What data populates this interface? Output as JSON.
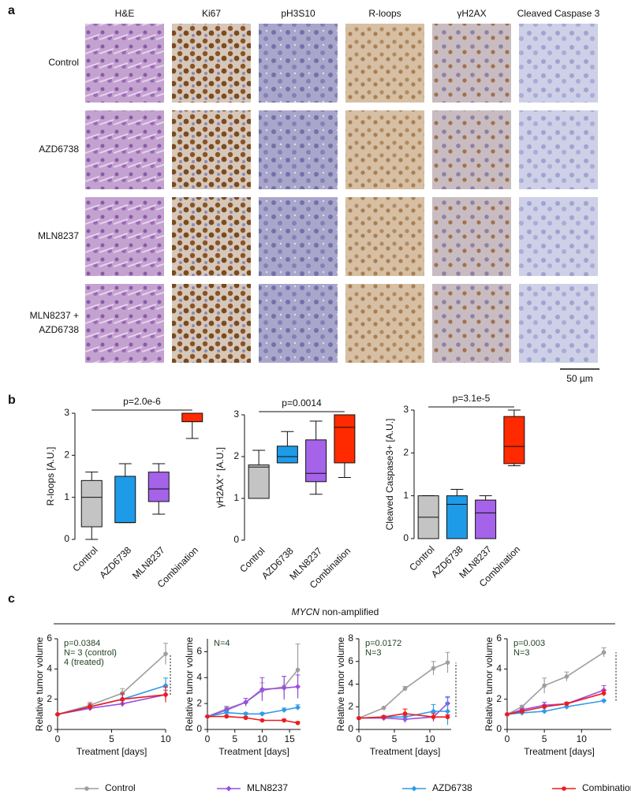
{
  "panel_labels": [
    "a",
    "b",
    "c"
  ],
  "micrographs": {
    "columns": [
      "H&E",
      "Ki67",
      "pH3S10",
      "R-loops",
      "γH2AX",
      "Cleaved Caspase 3"
    ],
    "rows": [
      [
        "Control"
      ],
      [
        "AZD6738"
      ],
      [
        "MLN8237"
      ],
      [
        "MLN8237 +",
        "AZD6738"
      ]
    ],
    "scale_bar": "50 µm"
  },
  "group_label": {
    "gene": "MYCN",
    "text": "non-amplified"
  },
  "legend": {
    "entries": [
      {
        "name": "Control",
        "color": "#9e9e9e",
        "marker": "circle"
      },
      {
        "name": "MLN8237",
        "color": "#9a4fe0",
        "marker": "diamond"
      },
      {
        "name": "AZD6738",
        "color": "#2f9be8",
        "marker": "diamond"
      },
      {
        "name": "Combination",
        "color": "#ee1c1c",
        "marker": "circle"
      }
    ]
  },
  "chart_data": [
    {
      "type": "box",
      "ylabel": "R-loops [A.U.]",
      "annotation": "p=2.0e-6",
      "categories": [
        "Control",
        "AZD6738",
        "MLN8237",
        "Combination"
      ],
      "colors": [
        "#c4c4c4",
        "#1e9be8",
        "#a463e8",
        "#ff2a00"
      ],
      "boxes": [
        {
          "min": 0,
          "q1": 0.3,
          "median": 1.0,
          "q3": 1.4,
          "max": 1.6
        },
        {
          "min": 0.4,
          "q1": 0.4,
          "median": 0.4,
          "q3": 1.5,
          "max": 1.8
        },
        {
          "min": 0.6,
          "q1": 0.9,
          "median": 1.2,
          "q3": 1.6,
          "max": 1.8
        },
        {
          "min": 2.4,
          "q1": 2.8,
          "median": 2.8,
          "q3": 3.0,
          "max": 3.0
        }
      ],
      "ylim": [
        0,
        3
      ],
      "yticks": [
        0,
        1,
        2,
        3
      ]
    },
    {
      "type": "box",
      "ylabel": "γH2AX⁺ [A.U.]",
      "annotation": "p=0.0014",
      "categories": [
        "Control",
        "AZD6738",
        "MLN8237",
        "Combination"
      ],
      "colors": [
        "#c4c4c4",
        "#1e9be8",
        "#a463e8",
        "#ff2a00"
      ],
      "boxes": [
        {
          "min": 1.0,
          "q1": 1.0,
          "median": 1.75,
          "q3": 1.8,
          "max": 2.15
        },
        {
          "min": 1.85,
          "q1": 1.85,
          "median": 2.0,
          "q3": 2.25,
          "max": 2.6
        },
        {
          "min": 1.1,
          "q1": 1.4,
          "median": 1.6,
          "q3": 2.4,
          "max": 2.85
        },
        {
          "min": 1.5,
          "q1": 1.85,
          "median": 2.7,
          "q3": 3.0,
          "max": 3.0
        }
      ],
      "ylim": [
        0,
        3
      ],
      "yticks": [
        0,
        1,
        2,
        3
      ]
    },
    {
      "type": "box",
      "ylabel": "Cleaved Caspase3+ [A.U.]",
      "annotation": "p=3.1e-5",
      "categories": [
        "Control",
        "AZD6738",
        "MLN8237",
        "Combination"
      ],
      "colors": [
        "#c4c4c4",
        "#1e9be8",
        "#a463e8",
        "#ff2a00"
      ],
      "boxes": [
        {
          "min": 0,
          "q1": 0,
          "median": 0.5,
          "q3": 1.0,
          "max": 1.0
        },
        {
          "min": 0,
          "q1": 0,
          "median": 0.8,
          "q3": 1.0,
          "max": 1.15
        },
        {
          "min": 0,
          "q1": 0,
          "median": 0.6,
          "q3": 0.9,
          "max": 1.0
        },
        {
          "min": 1.7,
          "q1": 1.75,
          "median": 2.15,
          "q3": 2.85,
          "max": 3.0
        }
      ],
      "ylim": [
        0,
        3
      ],
      "yticks": [
        0,
        1,
        2,
        3
      ]
    },
    {
      "type": "line",
      "xlabel": "Treatment [days]",
      "ylabel": "Relative tumor volume",
      "annotations": [
        "p=0.0384",
        "N= 3 (control)",
        "4 (treated)"
      ],
      "end_comparison_line": true,
      "x": [
        0,
        3,
        6,
        10
      ],
      "series": [
        {
          "values": [
            1,
            1.6,
            2.4,
            5.0
          ],
          "errors": [
            0,
            0.2,
            0.3,
            0.7
          ]
        },
        {
          "values": [
            1,
            1.4,
            1.7,
            2.3
          ],
          "errors": [
            0,
            0.1,
            0.2,
            0.3
          ]
        },
        {
          "values": [
            1,
            1.5,
            2.0,
            2.9
          ],
          "errors": [
            0,
            0.1,
            0.3,
            0.5
          ]
        },
        {
          "values": [
            1,
            1.5,
            2.0,
            2.3
          ],
          "errors": [
            0,
            0.2,
            0.4,
            0.5
          ]
        }
      ],
      "xlim": [
        0,
        10
      ],
      "xticks": [
        0,
        5,
        10
      ],
      "ylim": [
        0,
        6
      ],
      "yticks": [
        0,
        2,
        4,
        6
      ]
    },
    {
      "type": "line",
      "xlabel": "Treatment [days]",
      "ylabel": "Relative tumor volume",
      "annotations": [
        "N=4"
      ],
      "end_comparison_line": false,
      "x": [
        0,
        3.5,
        7,
        10,
        14,
        16.5
      ],
      "series": [
        {
          "values": [
            1,
            1.6,
            2.1,
            3.0,
            3.3,
            4.6
          ],
          "errors": [
            0,
            0.2,
            0.3,
            0.6,
            0.8,
            2.0
          ]
        },
        {
          "values": [
            1,
            1.5,
            2.1,
            3.1,
            3.2,
            3.3
          ],
          "errors": [
            0,
            0.2,
            0.3,
            0.9,
            0.9,
            0.9
          ]
        },
        {
          "values": [
            1,
            1.3,
            1.2,
            1.2,
            1.5,
            1.7
          ],
          "errors": [
            0,
            0.1,
            0.1,
            0.1,
            0.15,
            0.2
          ]
        },
        {
          "values": [
            1,
            1.0,
            0.9,
            0.7,
            0.7,
            0.5
          ],
          "errors": [
            0,
            0.1,
            0.1,
            0.05,
            0.1,
            0.1
          ]
        }
      ],
      "xlim": [
        0,
        17
      ],
      "xticks": [
        0,
        5,
        10,
        15
      ],
      "ylim": [
        0,
        7
      ],
      "yticks": [
        0,
        2,
        4,
        6
      ]
    },
    {
      "type": "line",
      "xlabel": "Treatment [days]",
      "ylabel": "Relative tumor volume",
      "annotations": [
        "p=0.0172",
        "N=3"
      ],
      "end_comparison_line": true,
      "x": [
        0,
        3.5,
        6.5,
        10.5,
        12.5
      ],
      "series": [
        {
          "values": [
            1,
            1.9,
            3.6,
            5.4,
            5.9
          ],
          "errors": [
            0,
            0.05,
            0.2,
            0.6,
            0.9
          ]
        },
        {
          "values": [
            1,
            1.0,
            0.9,
            1.1,
            2.3
          ],
          "errors": [
            0,
            0.1,
            0.3,
            0.4,
            0.6
          ]
        },
        {
          "values": [
            1,
            1.1,
            1.1,
            1.6,
            1.6
          ],
          "errors": [
            0,
            0.1,
            0.2,
            0.6,
            1.2
          ]
        },
        {
          "values": [
            1,
            1.1,
            1.4,
            1.1,
            1.1
          ],
          "errors": [
            0,
            0.1,
            0.4,
            0.3,
            0.2
          ]
        }
      ],
      "xlim": [
        0,
        13
      ],
      "xticks": [
        0,
        5,
        10
      ],
      "ylim": [
        0,
        8
      ],
      "yticks": [
        0,
        2,
        4,
        6,
        8
      ]
    },
    {
      "type": "line",
      "xlabel": "Treatment [days]",
      "ylabel": "Relative tumor volume",
      "annotations": [
        "p=0.003",
        "N=3"
      ],
      "end_comparison_line": true,
      "x": [
        0,
        2,
        5,
        8,
        13
      ],
      "series": [
        {
          "values": [
            1,
            1.5,
            2.9,
            3.5,
            5.1
          ],
          "errors": [
            0,
            0.1,
            0.5,
            0.3,
            0.3
          ]
        },
        {
          "values": [
            1,
            1.3,
            1.6,
            1.7,
            2.6
          ],
          "errors": [
            0,
            0.1,
            0.2,
            0.1,
            0.3
          ]
        },
        {
          "values": [
            1,
            1.1,
            1.2,
            1.5,
            1.9
          ],
          "errors": [
            0,
            0.05,
            0.05,
            0.05,
            0.05
          ]
        },
        {
          "values": [
            1,
            1.2,
            1.5,
            1.7,
            2.4
          ],
          "errors": [
            0,
            0.1,
            0.1,
            0.1,
            0.2
          ]
        }
      ],
      "xlim": [
        0,
        14
      ],
      "xticks": [
        0,
        5,
        10
      ],
      "ylim": [
        0,
        6
      ],
      "yticks": [
        0,
        2,
        4,
        6
      ]
    }
  ]
}
